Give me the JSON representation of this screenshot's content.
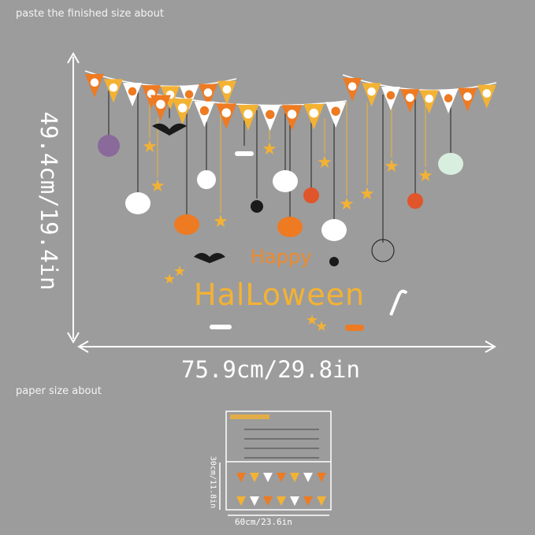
{
  "captions": {
    "finished_size": "paste the finished  size about",
    "paper_size": "paper size about"
  },
  "finished_dimensions": {
    "height": "49.4cm/19.4in",
    "width": "75.9cm/29.8in"
  },
  "paper_dimensions": {
    "height": "30cm/11.8in",
    "width": "60cm/23.6in"
  },
  "artwork": {
    "line1": "Happy",
    "line2": "HalLoween"
  },
  "colors": {
    "background": "#9c9c9c",
    "orange": "#ee7a22",
    "yellow": "#f4b233",
    "white": "#ffffff",
    "black": "#1a1a1a"
  }
}
